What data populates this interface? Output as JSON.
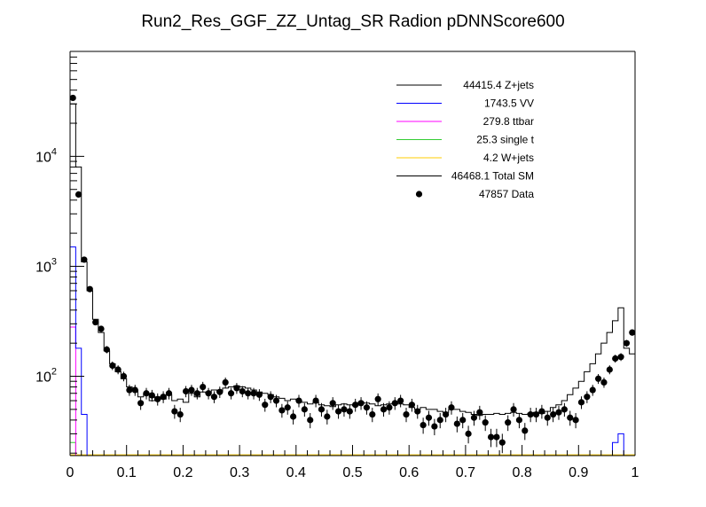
{
  "chart_data": {
    "type": "histogram",
    "title": "Run2_Res_GGF_ZZ_Untag_SR Radion  pDNNScore600",
    "xlabel": "",
    "ylabel": "",
    "xlim": [
      0,
      1
    ],
    "ylim": [
      19,
      90000
    ],
    "yscale": "log",
    "x_ticks": [
      {
        "value": 0,
        "label": "0"
      },
      {
        "value": 0.1,
        "label": "0.1"
      },
      {
        "value": 0.2,
        "label": "0.2"
      },
      {
        "value": 0.3,
        "label": "0.3"
      },
      {
        "value": 0.4,
        "label": "0.4"
      },
      {
        "value": 0.5,
        "label": "0.5"
      },
      {
        "value": 0.6,
        "label": "0.6"
      },
      {
        "value": 0.7,
        "label": "0.7"
      },
      {
        "value": 0.8,
        "label": "0.8"
      },
      {
        "value": 0.9,
        "label": "0.9"
      },
      {
        "value": 1,
        "label": "1"
      }
    ],
    "y_ticks": [
      {
        "value": 100,
        "base": "10",
        "exp": "2"
      },
      {
        "value": 1000,
        "base": "10",
        "exp": "3"
      },
      {
        "value": 10000,
        "base": "10",
        "exp": "4"
      }
    ],
    "bins": {
      "start": 0,
      "end": 1,
      "n": 100
    },
    "legend": [
      {
        "key": "zjets",
        "label": "44415.4 Z+jets",
        "color": "#000000",
        "style": "line"
      },
      {
        "key": "vv",
        "label": "1743.5 VV",
        "color": "#0000ff",
        "style": "line"
      },
      {
        "key": "ttbar",
        "label": "279.8 ttbar",
        "color": "#ff00ff",
        "style": "line"
      },
      {
        "key": "singlet",
        "label": "25.3 single t",
        "color": "#33cc33",
        "style": "line"
      },
      {
        "key": "wjets",
        "label": "4.2 W+jets",
        "color": "#ffcc00",
        "style": "line"
      },
      {
        "key": "total",
        "label": "46468.1 Total SM",
        "color": "#000000",
        "style": "line"
      },
      {
        "key": "data",
        "label": "47857 Data",
        "color": "#000000",
        "style": "marker"
      }
    ],
    "series": [
      {
        "name": "Total SM",
        "color": "#000000",
        "values": [
          30000,
          8000,
          1100,
          600,
          330,
          250,
          170,
          130,
          110,
          95,
          80,
          75,
          65,
          70,
          60,
          65,
          62,
          68,
          60,
          62,
          58,
          70,
          65,
          72,
          70,
          75,
          72,
          78,
          80,
          82,
          80,
          78,
          75,
          72,
          70,
          68,
          65,
          63,
          60,
          62,
          60,
          58,
          56,
          58,
          55,
          54,
          53,
          55,
          56,
          55,
          54,
          58,
          57,
          56,
          54,
          55,
          56,
          57,
          56,
          55,
          52,
          50,
          52,
          50,
          50,
          48,
          47,
          50,
          50,
          48,
          47,
          45,
          44,
          45,
          45,
          46,
          45,
          46,
          47,
          46,
          45,
          46,
          47,
          46,
          48,
          52,
          55,
          60,
          68,
          78,
          90,
          110,
          130,
          160,
          200,
          250,
          320,
          420,
          180,
          160
        ]
      },
      {
        "name": "VV",
        "color": "#0000ff",
        "values": [
          1500,
          180,
          45,
          19,
          19,
          19,
          19,
          19,
          19,
          19,
          19,
          19,
          19,
          19,
          19,
          19,
          19,
          19,
          19,
          19,
          19,
          19,
          19,
          19,
          19,
          19,
          19,
          19,
          19,
          19,
          19,
          19,
          19,
          19,
          19,
          19,
          19,
          19,
          19,
          19,
          19,
          19,
          19,
          19,
          19,
          19,
          19,
          19,
          19,
          19,
          19,
          19,
          19,
          19,
          19,
          19,
          19,
          19,
          19,
          19,
          19,
          19,
          19,
          19,
          19,
          19,
          19,
          19,
          19,
          19,
          19,
          19,
          19,
          19,
          19,
          19,
          19,
          19,
          19,
          19,
          19,
          19,
          19,
          19,
          19,
          19,
          19,
          19,
          19,
          19,
          19,
          19,
          19,
          19,
          19,
          19,
          25,
          30,
          19,
          19
        ]
      },
      {
        "name": "ttbar",
        "color": "#ff00ff",
        "values": [
          280,
          19,
          19,
          19,
          19,
          19,
          19,
          19,
          19,
          19,
          19,
          19,
          19,
          19,
          19,
          19,
          19,
          19,
          19,
          19,
          19,
          19,
          19,
          19,
          19,
          19,
          19,
          19,
          19,
          19,
          19,
          19,
          19,
          19,
          19,
          19,
          19,
          19,
          19,
          19,
          19,
          19,
          19,
          19,
          19,
          19,
          19,
          19,
          19,
          19,
          19,
          19,
          19,
          19,
          19,
          19,
          19,
          19,
          19,
          19,
          19,
          19,
          19,
          19,
          19,
          19,
          19,
          19,
          19,
          19,
          19,
          19,
          19,
          19,
          19,
          19,
          19,
          19,
          19,
          19,
          19,
          19,
          19,
          19,
          19,
          19,
          19,
          19,
          19,
          19,
          19,
          19,
          19,
          19,
          19,
          19,
          19,
          19,
          19,
          19
        ]
      },
      {
        "name": "single t",
        "color": "#33cc33",
        "values": [
          25,
          19,
          19,
          19,
          19,
          19,
          19,
          19,
          19,
          19,
          19,
          19,
          19,
          19,
          19,
          19,
          19,
          19,
          19,
          19,
          19,
          19,
          19,
          19,
          19,
          19,
          19,
          19,
          19,
          19,
          19,
          19,
          19,
          19,
          19,
          19,
          19,
          19,
          19,
          19,
          19,
          19,
          19,
          19,
          19,
          19,
          19,
          19,
          19,
          19,
          19,
          19,
          19,
          19,
          19,
          19,
          19,
          19,
          19,
          19,
          19,
          19,
          19,
          19,
          19,
          19,
          19,
          19,
          19,
          19,
          19,
          19,
          19,
          19,
          19,
          19,
          19,
          19,
          19,
          19,
          19,
          19,
          19,
          19,
          19,
          19,
          19,
          19,
          19,
          19,
          19,
          19,
          19,
          19,
          19,
          19,
          19,
          19,
          19,
          19
        ]
      },
      {
        "name": "W+jets",
        "color": "#ffcc00",
        "values": [
          19.3,
          19.3,
          19.3,
          19.3,
          19.3,
          19.3,
          19.3,
          19.3,
          19.3,
          19.3,
          19.3,
          19.3,
          19.3,
          19.3,
          19.3,
          19.3,
          19.3,
          19.3,
          19.3,
          19.3,
          19.3,
          19.3,
          19.3,
          19.3,
          19.3,
          19.3,
          19.3,
          19.3,
          19.3,
          19.3,
          19.3,
          19.3,
          19.3,
          19.3,
          19.3,
          19.3,
          19.3,
          19.3,
          19.3,
          19.3,
          19.3,
          19.3,
          19.3,
          19.3,
          19.3,
          19.3,
          19.3,
          19.3,
          19.3,
          19.3,
          19.3,
          19.3,
          19.3,
          19.3,
          19.3,
          19.3,
          19.3,
          19.3,
          19.3,
          19.3,
          19.3,
          19.3,
          19.3,
          19.3,
          19.3,
          19.3,
          19.3,
          19.3,
          19.3,
          19.3,
          19.3,
          19.3,
          19.3,
          19.3,
          19.3,
          19.3,
          19.3,
          19.3,
          19.3,
          19.3,
          19.3,
          19.3,
          19.3,
          19.3,
          19.3,
          19.3,
          19.3,
          19.3,
          19.3,
          19.3,
          19.3,
          19.3,
          19.3,
          19.3,
          19.3,
          19.3,
          19.3,
          19.3,
          19.3,
          19.3
        ]
      },
      {
        "name": "Data",
        "color": "#000000",
        "values": [
          34000,
          4500,
          1150,
          620,
          310,
          270,
          175,
          125,
          115,
          100,
          75,
          75,
          57,
          70,
          67,
          62,
          65,
          70,
          48,
          45,
          73,
          75,
          70,
          80,
          70,
          65,
          72,
          88,
          70,
          78,
          73,
          70,
          70,
          68,
          55,
          65,
          60,
          49,
          52,
          43,
          60,
          50,
          40,
          60,
          50,
          43,
          57,
          48,
          50,
          48,
          55,
          57,
          52,
          45,
          62,
          50,
          52,
          57,
          60,
          45,
          55,
          48,
          36,
          42,
          35,
          40,
          45,
          52,
          37,
          40,
          30,
          42,
          47,
          38,
          28,
          28,
          25,
          38,
          50,
          40,
          32,
          45,
          45,
          48,
          42,
          45,
          47,
          50,
          42,
          40,
          58,
          65,
          75,
          95,
          88,
          115,
          145,
          150,
          200,
          250
        ]
      }
    ]
  }
}
